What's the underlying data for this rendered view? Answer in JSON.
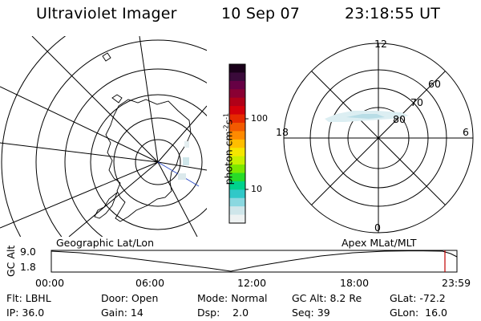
{
  "header": {
    "instrument": "Ultraviolet Imager",
    "date": "10 Sep 07",
    "time": "23:18:55 UT"
  },
  "colorbar": {
    "label": "photon cm",
    "label_sup1": "-2",
    "label_s": "s",
    "label_sup2": "-1",
    "tick_high": "100",
    "tick_low": "10",
    "colors": [
      "#1a001a",
      "#3a0a3a",
      "#660044",
      "#8a0033",
      "#b00018",
      "#d4000a",
      "#e62a00",
      "#f25a00",
      "#ff8a00",
      "#ffbe00",
      "#f5e600",
      "#c8f000",
      "#7ce800",
      "#28dc28",
      "#00d28c",
      "#30c8c8",
      "#8ad8e0",
      "#cfe6ea",
      "#eef2f2"
    ]
  },
  "left_panel": {
    "label": "Geographic Lat/Lon"
  },
  "right_panel": {
    "label": "Apex MLat/MLT",
    "mlt_labels": {
      "top": "12",
      "left": "18",
      "right": "6",
      "bottom": "0"
    },
    "lat_labels": [
      "60",
      "70",
      "80"
    ]
  },
  "altitude_plot": {
    "ylabel": "GC Alt",
    "ytick_top": "9.0",
    "ytick_bottom": "1.8",
    "xticks": [
      "00:00",
      "06:00",
      "12:00",
      "18:00",
      "23:59"
    ]
  },
  "footer": {
    "row1": {
      "flt": "Flt: LBHL",
      "door": "Door: Open",
      "mode": "Mode: Normal",
      "gcalt": "GC Alt: 8.2 Re",
      "glat": "GLat: -72.2"
    },
    "row2": {
      "ip": "IP: 36.0",
      "gain": "Gain: 14",
      "dsp": "Dsp:    2.0",
      "seq": "Seq: 39",
      "glon": "GLon:  16.0"
    }
  }
}
